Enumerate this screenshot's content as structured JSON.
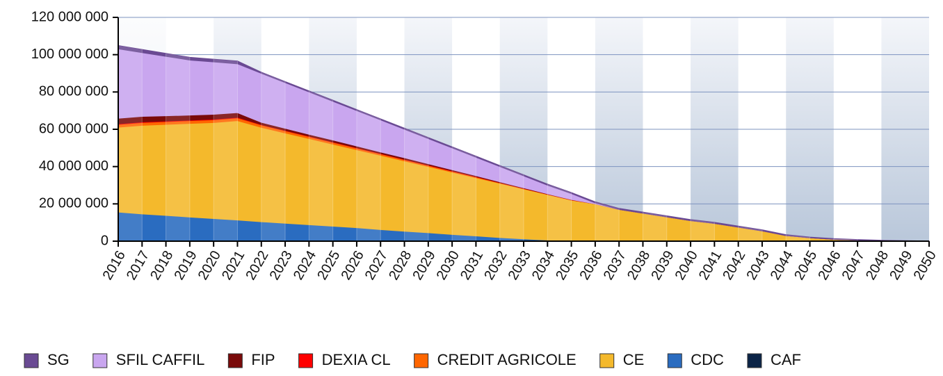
{
  "chart_data": {
    "type": "stacked_area",
    "categories": [
      "2016",
      "2017",
      "2018",
      "2019",
      "2020",
      "2021",
      "2022",
      "2023",
      "2024",
      "2025",
      "2026",
      "2027",
      "2028",
      "2029",
      "2030",
      "2031",
      "2032",
      "2033",
      "2034",
      "2035",
      "2036",
      "2037",
      "2038",
      "2039",
      "2040",
      "2041",
      "2042",
      "2043",
      "2044",
      "2045",
      "2046",
      "2047",
      "2048",
      "2049",
      "2050"
    ],
    "ylim": [
      0,
      120000000
    ],
    "yticks": [
      0,
      {
        "value": 20000000,
        "label": "20 000 000"
      },
      {
        "value": 40000000,
        "label": "40 000 000"
      },
      {
        "value": 60000000,
        "label": "60 000 000"
      },
      {
        "value": 80000000,
        "label": "80 000 000"
      },
      {
        "value": 100000000,
        "label": "100 000 000"
      },
      {
        "value": 120000000,
        "label": "120 000 000"
      }
    ],
    "grid": true,
    "legend": "bottom",
    "series": [
      {
        "name": "SG",
        "color": "#6a4a93",
        "values": [
          1800000,
          1700000,
          1600000,
          1500000,
          1500000,
          1500000,
          600000,
          600000,
          600000,
          600000,
          600000,
          600000,
          600000,
          600000,
          600000,
          600000,
          600000,
          600000,
          600000,
          600000,
          600000,
          600000,
          600000,
          600000,
          600000,
          600000,
          600000,
          600000,
          500000,
          400000,
          400000,
          300000,
          200000,
          200000,
          100000
        ]
      },
      {
        "name": "SFIL CAFFIL",
        "color": "#c9a6ef",
        "values": [
          37200000,
          34200000,
          31900000,
          29500000,
          28100000,
          26200000,
          26300000,
          24500000,
          22700000,
          20800000,
          19000000,
          17200000,
          15300000,
          13500000,
          11700000,
          9900000,
          8200000,
          6400000,
          4600000,
          3200000,
          500000,
          0,
          0,
          0,
          0,
          0,
          0,
          0,
          0,
          0,
          0,
          0,
          0,
          0,
          0
        ]
      },
      {
        "name": "FIP",
        "color": "#7a0a0a",
        "values": [
          3000000,
          3000000,
          2800000,
          2700000,
          2600000,
          2500000,
          1200000,
          1100000,
          1000000,
          1000000,
          900000,
          800000,
          800000,
          700000,
          600000,
          500000,
          400000,
          300000,
          200000,
          100000,
          0,
          0,
          0,
          0,
          0,
          0,
          0,
          0,
          0,
          0,
          0,
          0,
          0,
          0,
          0
        ]
      },
      {
        "name": "DEXIA CL",
        "color": "#ff0000",
        "values": [
          300000,
          300000,
          300000,
          300000,
          300000,
          300000,
          200000,
          200000,
          200000,
          200000,
          200000,
          200000,
          200000,
          200000,
          200000,
          200000,
          100000,
          100000,
          100000,
          100000,
          0,
          0,
          0,
          0,
          0,
          0,
          0,
          0,
          0,
          0,
          0,
          0,
          0,
          0,
          0
        ]
      },
      {
        "name": "CREDIT AGRICOLE",
        "color": "#ff6600",
        "values": [
          1500000,
          1500000,
          1500000,
          1500000,
          1500000,
          1500000,
          1300000,
          1200000,
          1100000,
          1000000,
          900000,
          800000,
          700000,
          600000,
          500000,
          400000,
          300000,
          200000,
          100000,
          100000,
          0,
          0,
          0,
          0,
          0,
          0,
          0,
          0,
          0,
          0,
          0,
          0,
          0,
          0,
          0
        ]
      },
      {
        "name": "CE",
        "color": "#f4b92c",
        "values": [
          45500000,
          47500000,
          48800000,
          50200000,
          51500000,
          53300000,
          50600000,
          48400000,
          46200000,
          44000000,
          41800000,
          39800000,
          37700000,
          35500000,
          33400000,
          31200000,
          29100000,
          26800000,
          24400000,
          21800000,
          20000000,
          17000000,
          15000000,
          13000000,
          11000000,
          9500000,
          7500000,
          5500000,
          3000000,
          1800000,
          1000000,
          600000,
          300000,
          100000,
          0
        ]
      },
      {
        "name": "CDC",
        "color": "#2a6cc0",
        "values": [
          15500000,
          14500000,
          13700000,
          12800000,
          12000000,
          11200000,
          10400000,
          9600000,
          8800000,
          8000000,
          7200000,
          6200000,
          5300000,
          4500000,
          3600000,
          2800000,
          1900000,
          1200000,
          600000,
          200000,
          0,
          0,
          0,
          0,
          0,
          0,
          0,
          0,
          0,
          0,
          0,
          0,
          0,
          0,
          0
        ]
      },
      {
        "name": "CAF",
        "color": "#0b2447",
        "values": [
          100000,
          100000,
          100000,
          100000,
          100000,
          100000,
          0,
          0,
          0,
          0,
          0,
          0,
          0,
          0,
          0,
          0,
          0,
          0,
          0,
          0,
          0,
          0,
          0,
          0,
          0,
          0,
          0,
          0,
          0,
          0,
          0,
          0,
          0,
          0,
          0
        ]
      }
    ]
  }
}
